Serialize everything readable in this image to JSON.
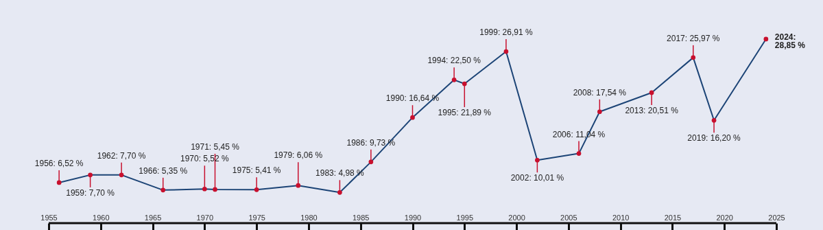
{
  "chart_data": {
    "type": "line",
    "x": [
      1956,
      1959,
      1962,
      1966,
      1970,
      1971,
      1975,
      1979,
      1983,
      1986,
      1990,
      1994,
      1995,
      1999,
      2002,
      2006,
      2008,
      2013,
      2017,
      2019,
      2024
    ],
    "series": [
      {
        "color": "#1c4476",
        "values": [
          6.52,
          7.7,
          7.7,
          5.35,
          5.52,
          5.45,
          5.41,
          6.06,
          4.98,
          9.73,
          16.64,
          22.5,
          21.89,
          26.91,
          10.01,
          11.04,
          17.54,
          20.51,
          25.97,
          16.2,
          28.85
        ],
        "value_labels": [
          "1956: 6,52 %",
          "1959: 7,70 %",
          "1962: 7,70 %",
          "1966: 5,35 %",
          "1970: 5,52 %",
          "1971: 5,45 %",
          "1975: 5,41 %",
          "1979: 6,06 %",
          "1983: 4,98 %",
          "1986: 9,73 %",
          "1990: 16,64 %",
          "1994: 22,50 %",
          "1995: 21,89 %",
          "1999: 26,91 %",
          "2002: 10,01 %",
          "2006: 11,04 %",
          "2008: 17,54 %",
          "2013: 20,51 %",
          "2017: 25,97 %",
          "2019: 16,20 %",
          "2024: 28,85 %"
        ]
      }
    ],
    "xlim": [
      1955,
      2025
    ],
    "xticks": [
      1955,
      1960,
      1965,
      1970,
      1975,
      1980,
      1985,
      1990,
      1995,
      2000,
      2005,
      2010,
      2015,
      2020,
      2025
    ],
    "grid": false,
    "marker": "circle",
    "line_style": "solid"
  }
}
